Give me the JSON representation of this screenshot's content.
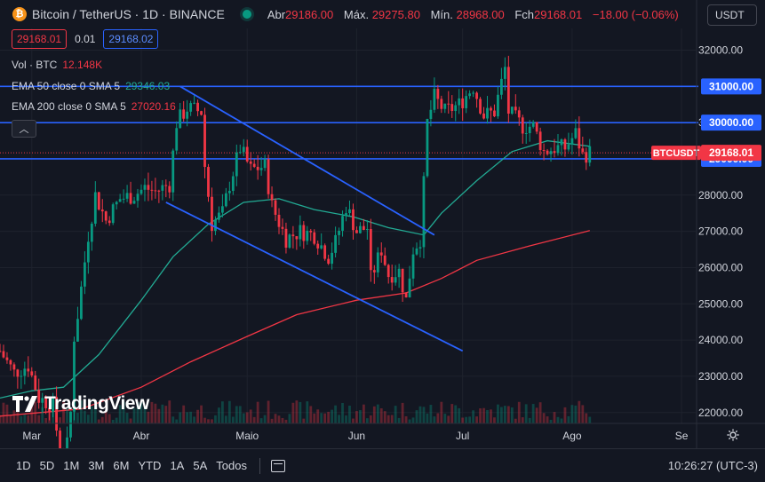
{
  "header": {
    "symbol_icon": "bitcoin-icon",
    "symbol_title": "Bitcoin / TetherUS · 1D · BINANCE",
    "status": "market-open",
    "ohlc": [
      {
        "label": "Abr",
        "value": "29186.00"
      },
      {
        "label": "Máx.",
        "value": "29275.80"
      },
      {
        "label": "Mín.",
        "value": "28968.00"
      },
      {
        "label": "Fch",
        "value": "29168.01"
      },
      {
        "label": "",
        "value": "−18.00 (−0.06%)"
      }
    ],
    "currency": "USDT"
  },
  "quote": {
    "sell": "29168.01",
    "spread": "0.01",
    "buy": "29168.02"
  },
  "indicators": {
    "vol_label": "Vol · BTC",
    "vol_value": "12.148K",
    "ema50_label": "EMA 50 close 0 SMA 5",
    "ema50_value": "29346.03",
    "ema200_label": "EMA 200 close 0 SMA 5",
    "ema200_value": "27020.16"
  },
  "watermark": "TradingView",
  "price_axis": {
    "ticks": [
      "32000.00",
      "30000.00",
      "28000.00",
      "27000.00",
      "26000.00",
      "25000.00",
      "24000.00",
      "23000.00",
      "22000.00"
    ],
    "highlight_labels": [
      "31000.00",
      "30000.00",
      "29000.00"
    ],
    "symbol_tag": "BTCUSDT",
    "last_price": "29168.01"
  },
  "time_axis": {
    "labels": [
      "Mar",
      "Abr",
      "Maio",
      "Jun",
      "Jul",
      "Ago",
      "Se"
    ]
  },
  "timeframes": [
    "1D",
    "5D",
    "1M",
    "3M",
    "6M",
    "YTD",
    "1A",
    "5A",
    "Todos"
  ],
  "clock": "10:26:27 (UTC-3)",
  "colors": {
    "up": "#089981",
    "down": "#f23645",
    "ema50": "#22ab94",
    "ema200": "#f23645",
    "hline": "#2962ff",
    "channel": "#2962ff",
    "background": "#131722"
  },
  "chart_data": {
    "type": "candlestick",
    "title": "Bitcoin / TetherUS · 1D · BINANCE",
    "x_range": [
      "2023-02-20",
      "2023-09-05"
    ],
    "ylim": [
      21700,
      32600
    ],
    "y_ticks": [
      22000,
      23000,
      24000,
      25000,
      26000,
      27000,
      28000,
      30000,
      32000
    ],
    "horizontal_lines": [
      31000,
      30000,
      29000
    ],
    "last_price": 29168.01,
    "channel_lines": [
      {
        "start": [
          "2023-04-12",
          31000
        ],
        "end": [
          "2023-06-23",
          26900
        ]
      },
      {
        "start": [
          "2023-04-08",
          27800
        ],
        "end": [
          "2023-07-01",
          23700
        ]
      }
    ],
    "close_series": [
      [
        "2023-02-20",
        23700
      ],
      [
        "2023-02-24",
        23100
      ],
      [
        "2023-02-28",
        23300
      ],
      [
        "2023-03-03",
        22400
      ],
      [
        "2023-03-07",
        22200
      ],
      [
        "2023-03-10",
        20200
      ],
      [
        "2023-03-12",
        22000
      ],
      [
        "2023-03-13",
        24100
      ],
      [
        "2023-03-14",
        24700
      ],
      [
        "2023-03-17",
        26900
      ],
      [
        "2023-03-19",
        28000
      ],
      [
        "2023-03-22",
        27300
      ],
      [
        "2023-03-26",
        27900
      ],
      [
        "2023-03-30",
        28000
      ],
      [
        "2023-04-02",
        28200
      ],
      [
        "2023-04-05",
        28100
      ],
      [
        "2023-04-09",
        28300
      ],
      [
        "2023-04-11",
        30000
      ],
      [
        "2023-04-14",
        30400
      ],
      [
        "2023-04-18",
        30300
      ],
      [
        "2023-04-19",
        28800
      ],
      [
        "2023-04-21",
        27200
      ],
      [
        "2023-04-24",
        27500
      ],
      [
        "2023-04-26",
        28300
      ],
      [
        "2023-04-29",
        29300
      ],
      [
        "2023-05-02",
        28700
      ],
      [
        "2023-05-06",
        28800
      ],
      [
        "2023-05-08",
        27700
      ],
      [
        "2023-05-12",
        26800
      ],
      [
        "2023-05-16",
        27000
      ],
      [
        "2023-05-20",
        26900
      ],
      [
        "2023-05-24",
        26300
      ],
      [
        "2023-05-26",
        26700
      ],
      [
        "2023-05-29",
        27700
      ],
      [
        "2023-06-01",
        27000
      ],
      [
        "2023-06-04",
        27100
      ],
      [
        "2023-06-05",
        25700
      ],
      [
        "2023-06-08",
        26500
      ],
      [
        "2023-06-10",
        25800
      ],
      [
        "2023-06-13",
        25900
      ],
      [
        "2023-06-15",
        25100
      ],
      [
        "2023-06-17",
        26500
      ],
      [
        "2023-06-19",
        26800
      ],
      [
        "2023-06-20",
        28300
      ],
      [
        "2023-06-21",
        30000
      ],
      [
        "2023-06-23",
        30700
      ],
      [
        "2023-06-26",
        30300
      ],
      [
        "2023-06-30",
        30500
      ],
      [
        "2023-07-04",
        31000
      ],
      [
        "2023-07-07",
        30200
      ],
      [
        "2023-07-10",
        30300
      ],
      [
        "2023-07-13",
        31500
      ],
      [
        "2023-07-14",
        30300
      ],
      [
        "2023-07-18",
        29900
      ],
      [
        "2023-07-21",
        29900
      ],
      [
        "2023-07-24",
        29200
      ],
      [
        "2023-07-27",
        29300
      ],
      [
        "2023-07-30",
        29300
      ],
      [
        "2023-08-02",
        29700
      ],
      [
        "2023-08-04",
        29100
      ],
      [
        "2023-08-06",
        29168
      ]
    ],
    "ema50": [
      [
        "2023-02-20",
        22400
      ],
      [
        "2023-03-01",
        22600
      ],
      [
        "2023-03-10",
        22700
      ],
      [
        "2023-03-20",
        23600
      ],
      [
        "2023-04-01",
        25100
      ],
      [
        "2023-04-10",
        26300
      ],
      [
        "2023-04-20",
        27200
      ],
      [
        "2023-04-30",
        27800
      ],
      [
        "2023-05-10",
        27900
      ],
      [
        "2023-05-20",
        27600
      ],
      [
        "2023-05-31",
        27400
      ],
      [
        "2023-06-10",
        27100
      ],
      [
        "2023-06-20",
        26900
      ],
      [
        "2023-06-25",
        27500
      ],
      [
        "2023-07-05",
        28400
      ],
      [
        "2023-07-15",
        29200
      ],
      [
        "2023-07-25",
        29500
      ],
      [
        "2023-08-06",
        29346
      ]
    ],
    "ema200": [
      [
        "2023-02-20",
        21900
      ],
      [
        "2023-03-15",
        22100
      ],
      [
        "2023-04-01",
        22700
      ],
      [
        "2023-04-15",
        23400
      ],
      [
        "2023-05-01",
        24100
      ],
      [
        "2023-05-15",
        24700
      ],
      [
        "2023-06-01",
        25100
      ],
      [
        "2023-06-15",
        25300
      ],
      [
        "2023-06-25",
        25700
      ],
      [
        "2023-07-05",
        26200
      ],
      [
        "2023-07-20",
        26600
      ],
      [
        "2023-08-06",
        27020
      ]
    ]
  }
}
